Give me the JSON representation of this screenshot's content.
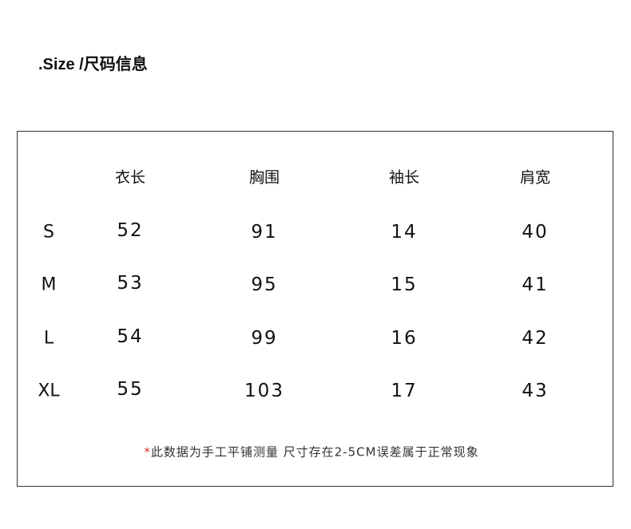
{
  "title": ".Size /尺码信息",
  "table": {
    "headers": [
      "衣长",
      "胸围",
      "袖长",
      "肩宽"
    ],
    "rows": [
      {
        "size": "S",
        "values": [
          "52",
          "91",
          "14",
          "40"
        ]
      },
      {
        "size": "M",
        "values": [
          "53",
          "95",
          "15",
          "41"
        ]
      },
      {
        "size": "L",
        "values": [
          "54",
          "99",
          "16",
          "42"
        ]
      },
      {
        "size": "XL",
        "values": [
          "55",
          "103",
          "17",
          "43"
        ]
      }
    ]
  },
  "note": {
    "marker": "*",
    "text": "此数据为手工平铺测量 尺寸存在2-5CM误差属于正常现象",
    "marker_color": "#dd3333"
  }
}
